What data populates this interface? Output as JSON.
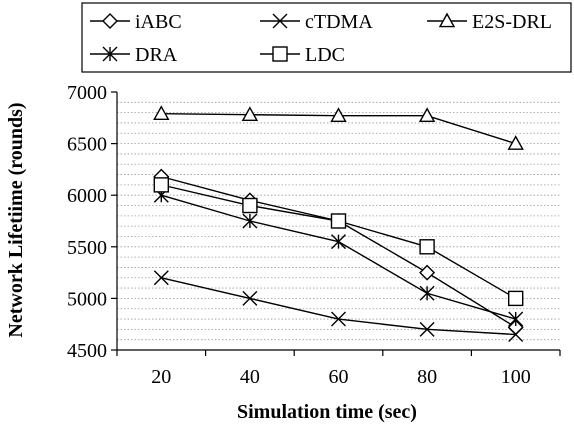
{
  "chart_data": {
    "type": "line",
    "title": "",
    "xlabel": "Simulation time (sec)",
    "ylabel": "Network Lifetiime (rounds)",
    "x": [
      20,
      40,
      60,
      80,
      100
    ],
    "x_tick_labels": [
      "20",
      "40",
      "60",
      "80",
      "100"
    ],
    "y_tick_labels": [
      "4500",
      "5000",
      "5500",
      "6000",
      "6500",
      "7000"
    ],
    "ylim": [
      4500,
      7000
    ],
    "grid": true,
    "legend_placement": "top",
    "series": [
      {
        "name": "iABC",
        "marker": "diamond",
        "values": [
          6180,
          5950,
          5750,
          5250,
          4720
        ]
      },
      {
        "name": "cTDMA",
        "marker": "x",
        "values": [
          5200,
          5000,
          4800,
          4700,
          4650
        ]
      },
      {
        "name": "E2S-DRL",
        "marker": "triangle",
        "values": [
          6790,
          6780,
          6770,
          6770,
          6500
        ]
      },
      {
        "name": "DRA",
        "marker": "asterisk",
        "values": [
          6000,
          5750,
          5550,
          5050,
          4800
        ]
      },
      {
        "name": "LDC",
        "marker": "square",
        "values": [
          6100,
          5900,
          5750,
          5500,
          5000
        ]
      }
    ],
    "colors": {
      "line": "#000000",
      "grid": "#999999",
      "background": "#ffffff"
    }
  }
}
